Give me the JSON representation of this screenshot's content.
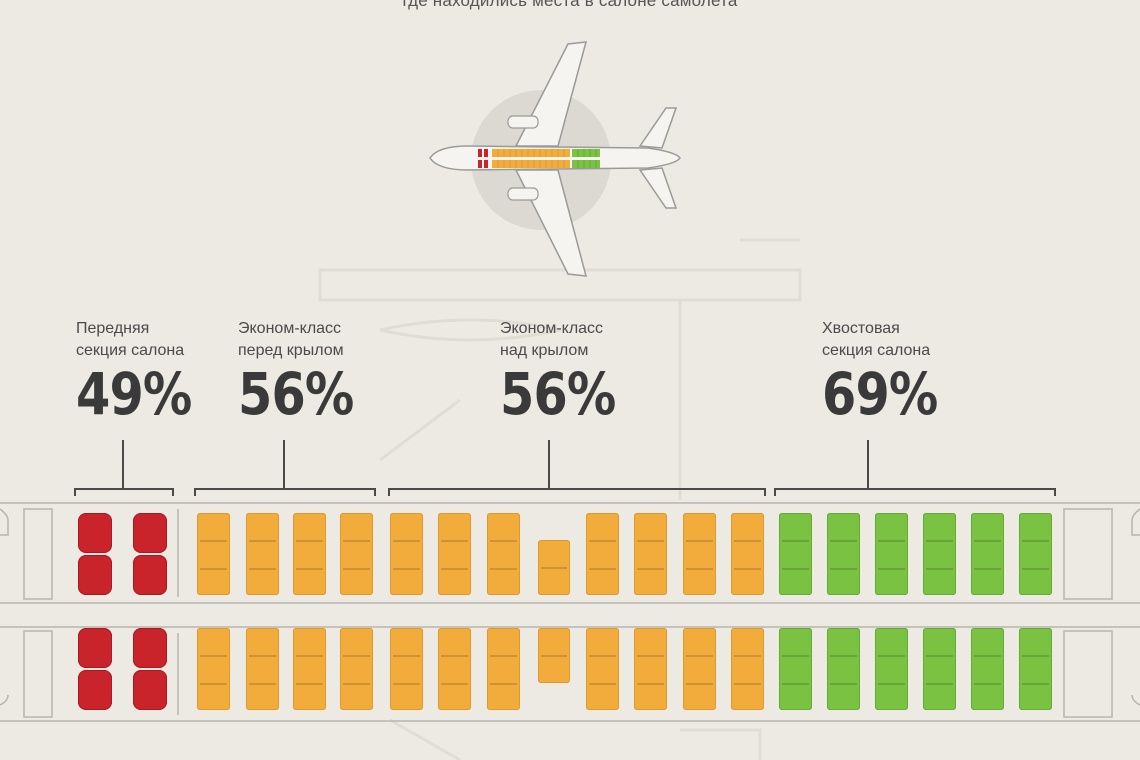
{
  "subtitle": "где находились места в салоне самолета",
  "colors": {
    "front": "#c9232b",
    "economy": "#f2ac3b",
    "tail": "#7ac242",
    "text": "#3a3a3a",
    "background": "#edeae4"
  },
  "sections": [
    {
      "id": "front",
      "label": "Передняя\nсекция салона",
      "percent": "49%"
    },
    {
      "id": "econ-before-wing",
      "label": "Эконом-класс\nперед крылом",
      "percent": "56%"
    },
    {
      "id": "econ-over-wing",
      "label": "Эконом-класс\nнад крылом",
      "percent": "56%"
    },
    {
      "id": "tail",
      "label": "Хвостовая\nсекция салона",
      "percent": "69%"
    }
  ]
}
